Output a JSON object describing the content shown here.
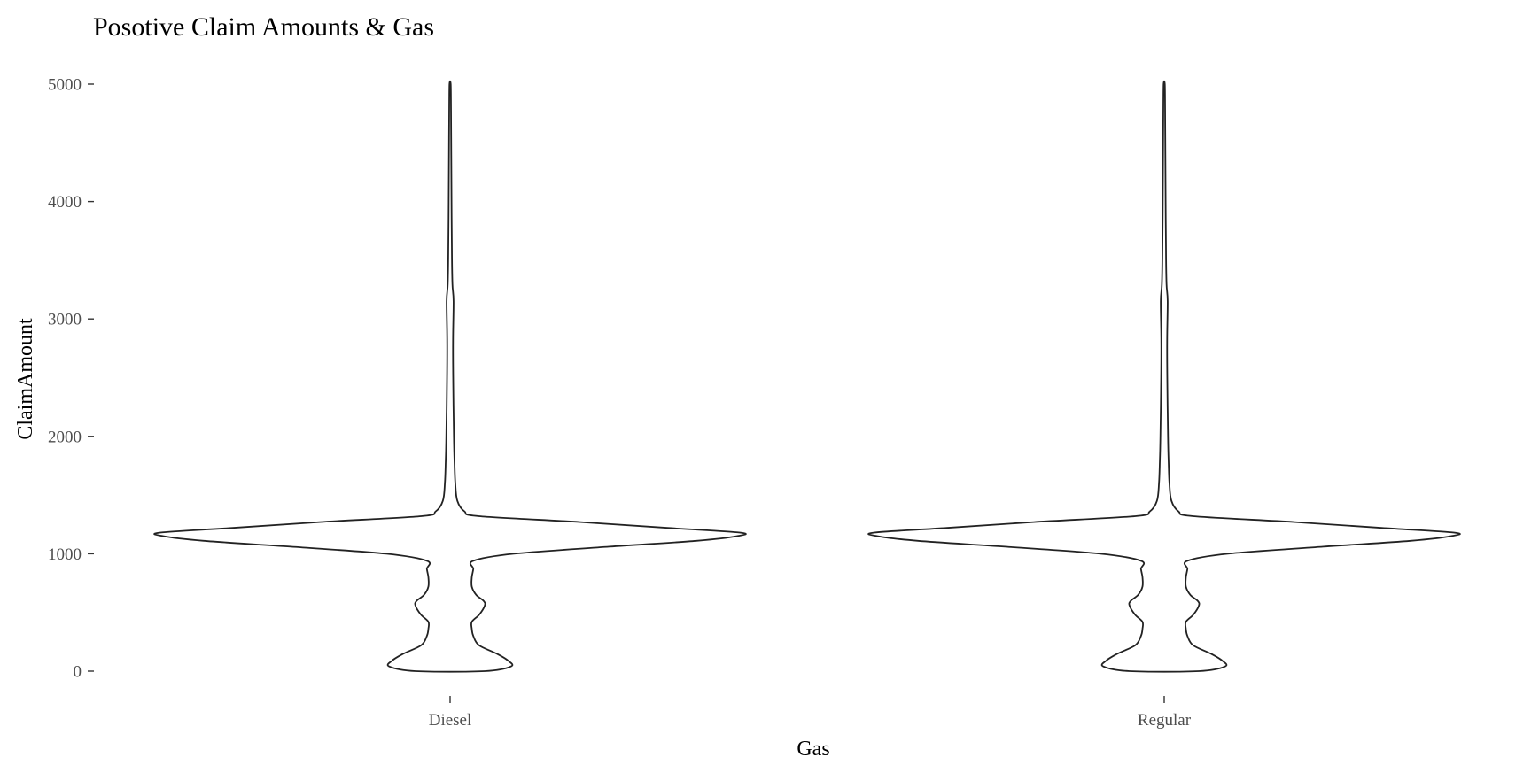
{
  "chart_data": {
    "type": "violin",
    "title": "Posotive Claim Amounts & Gas",
    "xlabel": "Gas",
    "ylabel": "ClaimAmount",
    "categories": [
      "Diesel",
      "Regular"
    ],
    "ylim": [
      0,
      5000
    ],
    "yticks": [
      0,
      1000,
      2000,
      3000,
      4000,
      5000
    ],
    "grid": false,
    "legend": "none",
    "line_color": "#222222",
    "density_profile": {
      "Diesel": [
        [
          0,
          0.12
        ],
        [
          40,
          0.21
        ],
        [
          90,
          0.2
        ],
        [
          150,
          0.16
        ],
        [
          220,
          0.1
        ],
        [
          300,
          0.08
        ],
        [
          360,
          0.075
        ],
        [
          420,
          0.075
        ],
        [
          480,
          0.1
        ],
        [
          560,
          0.12
        ],
        [
          600,
          0.115
        ],
        [
          650,
          0.09
        ],
        [
          720,
          0.075
        ],
        [
          800,
          0.075
        ],
        [
          870,
          0.08
        ],
        [
          940,
          0.08
        ],
        [
          1000,
          0.22
        ],
        [
          1060,
          0.55
        ],
        [
          1110,
          0.85
        ],
        [
          1150,
          0.99
        ],
        [
          1180,
          1.0
        ],
        [
          1220,
          0.75
        ],
        [
          1270,
          0.45
        ],
        [
          1320,
          0.1
        ],
        [
          1360,
          0.05
        ],
        [
          1450,
          0.025
        ],
        [
          1600,
          0.018
        ],
        [
          1800,
          0.015
        ],
        [
          2000,
          0.013
        ],
        [
          2400,
          0.011
        ],
        [
          2800,
          0.01
        ],
        [
          3150,
          0.012
        ],
        [
          3300,
          0.008
        ],
        [
          3600,
          0.006
        ],
        [
          4000,
          0.005
        ],
        [
          4400,
          0.004
        ],
        [
          4800,
          0.003
        ],
        [
          5000,
          0.002
        ]
      ],
      "Regular": [
        [
          0,
          0.12
        ],
        [
          40,
          0.21
        ],
        [
          90,
          0.2
        ],
        [
          150,
          0.16
        ],
        [
          220,
          0.1
        ],
        [
          300,
          0.08
        ],
        [
          360,
          0.075
        ],
        [
          420,
          0.075
        ],
        [
          480,
          0.1
        ],
        [
          560,
          0.12
        ],
        [
          600,
          0.115
        ],
        [
          650,
          0.09
        ],
        [
          720,
          0.075
        ],
        [
          800,
          0.075
        ],
        [
          870,
          0.08
        ],
        [
          940,
          0.08
        ],
        [
          1000,
          0.22
        ],
        [
          1060,
          0.55
        ],
        [
          1110,
          0.85
        ],
        [
          1150,
          0.99
        ],
        [
          1180,
          1.0
        ],
        [
          1220,
          0.75
        ],
        [
          1270,
          0.45
        ],
        [
          1320,
          0.1
        ],
        [
          1360,
          0.05
        ],
        [
          1450,
          0.025
        ],
        [
          1600,
          0.018
        ],
        [
          1800,
          0.015
        ],
        [
          2000,
          0.013
        ],
        [
          2400,
          0.011
        ],
        [
          2800,
          0.01
        ],
        [
          3150,
          0.012
        ],
        [
          3300,
          0.008
        ],
        [
          3600,
          0.006
        ],
        [
          4000,
          0.005
        ],
        [
          4400,
          0.004
        ],
        [
          4800,
          0.003
        ],
        [
          5000,
          0.002
        ]
      ]
    }
  }
}
